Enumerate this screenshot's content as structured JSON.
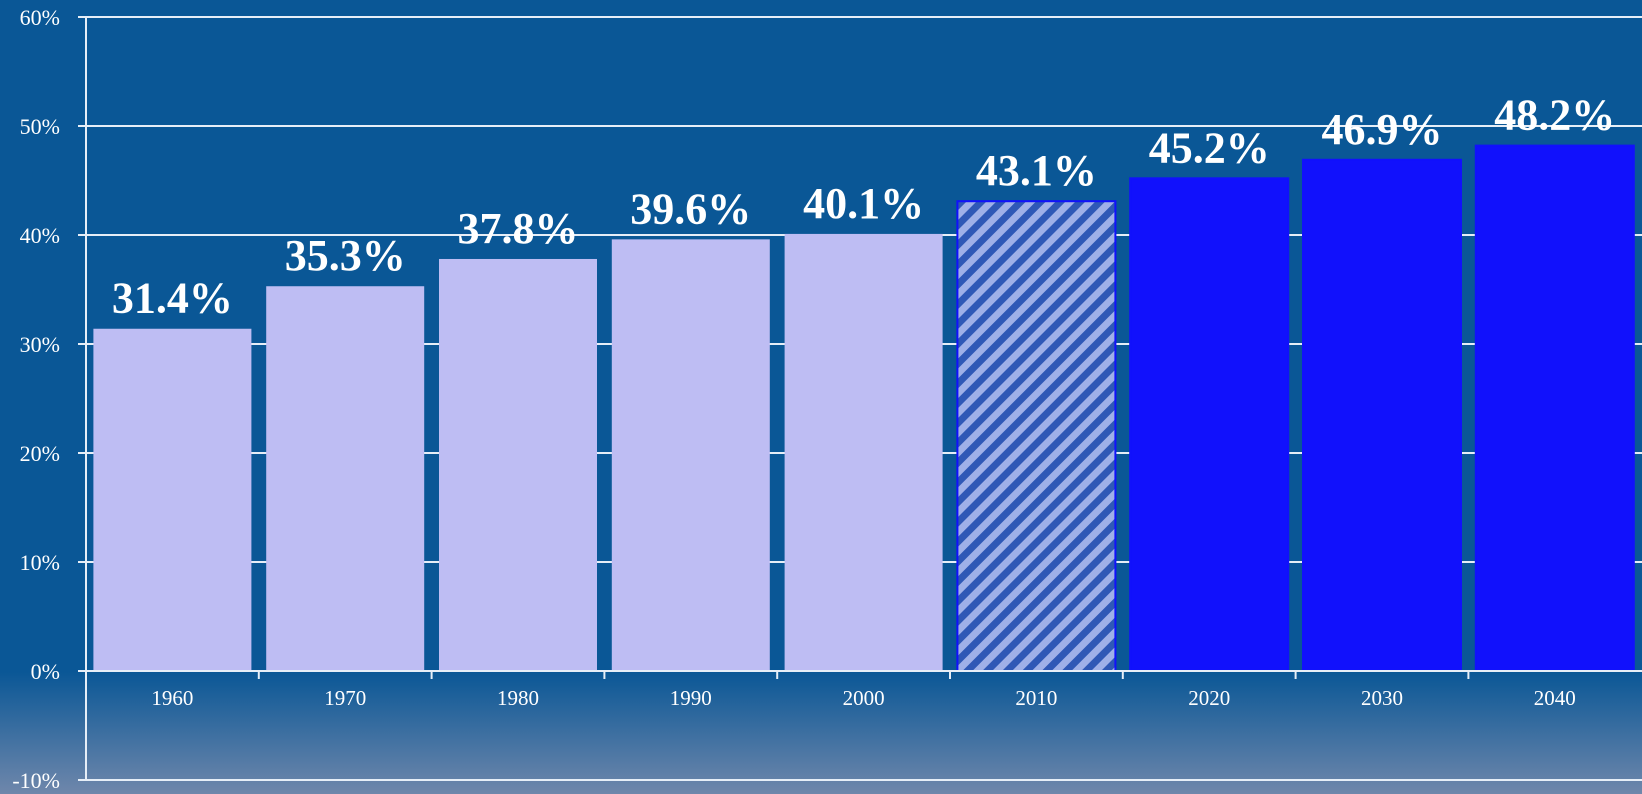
{
  "chart_data": {
    "type": "bar",
    "categories": [
      "1960",
      "1970",
      "1980",
      "1990",
      "2000",
      "2010",
      "2020",
      "2030",
      "2040"
    ],
    "values": [
      31.4,
      35.3,
      37.8,
      39.6,
      40.1,
      43.1,
      45.2,
      46.9,
      48.2
    ],
    "data_labels": [
      "31.4%",
      "35.3%",
      "37.8%",
      "39.6%",
      "40.1%",
      "43.1%",
      "45.2%",
      "46.9%",
      "48.2%"
    ],
    "bar_styles": [
      "historical",
      "historical",
      "historical",
      "historical",
      "historical",
      "estimate",
      "projected",
      "projected",
      "projected"
    ],
    "ylim": [
      -10,
      60
    ],
    "yticks": [
      -10,
      0,
      10,
      20,
      30,
      40,
      50,
      60
    ],
    "ytick_labels": [
      "-10%",
      "0%",
      "10%",
      "20%",
      "30%",
      "40%",
      "50%",
      "60%"
    ],
    "grid": true,
    "legend": "none",
    "title": "",
    "xlabel": "",
    "ylabel": ""
  },
  "colors": {
    "background": "#0a5796",
    "grid": "#e6eef7",
    "historical": "#bebdf3",
    "estimate_stripe": "#8f9fe0",
    "projected": "#1111fc",
    "bottom_fade": "#6f87ab",
    "text": "#ffffff"
  }
}
